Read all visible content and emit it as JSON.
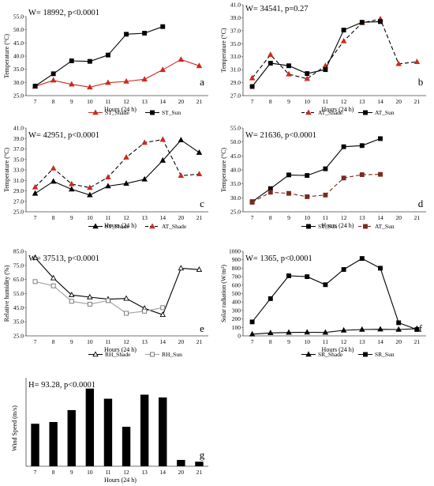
{
  "xlabel": "Hours (24 h)",
  "hour_ticks": [
    "7",
    "8",
    "9",
    "10",
    "11",
    "12",
    "13",
    "14",
    "20",
    "21"
  ],
  "chart_data": [
    {
      "id": "a",
      "type": "line",
      "stat": "W= 18992, p<0.0001",
      "panel_label": "a",
      "ylabel": "Temperature (°C)",
      "ylim": [
        25.0,
        55.0
      ],
      "yticks": [
        "25.0",
        "30.0",
        "35.0",
        "40.0",
        "45.0",
        "50.0",
        "55.0"
      ],
      "categories": [
        "7",
        "8",
        "9",
        "10",
        "11",
        "12",
        "13",
        "14",
        "20",
        "21"
      ],
      "series": [
        {
          "name": "ST_Shade",
          "marker": "tri",
          "dash": false,
          "color": "#cc2a1f",
          "mcolor": "#cc2a1f",
          "values": [
            28.5,
            30.8,
            29.3,
            28.2,
            29.9,
            30.4,
            31.2,
            34.8,
            38.7,
            36.3
          ]
        },
        {
          "name": "ST_Sun",
          "marker": "sq",
          "dash": false,
          "color": "#000000",
          "mcolor": "#000000",
          "values": [
            28.6,
            33.3,
            38.2,
            38.0,
            40.4,
            48.3,
            48.7,
            51.2,
            null,
            null
          ]
        }
      ]
    },
    {
      "id": "b",
      "type": "line",
      "stat": "W= 34541, p=0.27",
      "panel_label": "b",
      "ylabel": "Temperature (°C)",
      "ylim": [
        27.0,
        41.0
      ],
      "yticks": [
        "27.0",
        "29.0",
        "31.0",
        "33.0",
        "35.0",
        "37.0",
        "39.0",
        "41.0"
      ],
      "categories": [
        "7",
        "8",
        "9",
        "10",
        "11",
        "12",
        "13",
        "14",
        "20",
        "21"
      ],
      "series": [
        {
          "name": "AT_Shade",
          "marker": "tri",
          "dash": true,
          "color": "#000000",
          "mcolor": "#cc2a1f",
          "values": [
            29.7,
            33.3,
            30.3,
            29.6,
            31.6,
            35.4,
            38.2,
            38.8,
            31.9,
            32.2
          ]
        },
        {
          "name": "AT_Sun",
          "marker": "sq",
          "dash": false,
          "color": "#000000",
          "mcolor": "#000000",
          "values": [
            28.4,
            32.0,
            31.6,
            30.4,
            31.0,
            37.1,
            38.3,
            38.4,
            null,
            null
          ]
        }
      ]
    },
    {
      "id": "c",
      "type": "line",
      "stat": "W= 42951, p<0.0001",
      "panel_label": "c",
      "ylabel": "Temperature (°C)",
      "ylim": [
        25.0,
        41.0
      ],
      "yticks": [
        "25.0",
        "27.0",
        "29.0",
        "31.0",
        "33.0",
        "35.0",
        "37.0",
        "39.0",
        "41.0"
      ],
      "categories": [
        "7",
        "8",
        "9",
        "10",
        "11",
        "12",
        "13",
        "14",
        "20",
        "21"
      ],
      "series": [
        {
          "name": "ST_Shade",
          "marker": "tri",
          "dash": false,
          "color": "#000000",
          "mcolor": "#000000",
          "values": [
            28.5,
            30.8,
            29.3,
            28.2,
            29.9,
            30.4,
            31.2,
            34.8,
            38.7,
            36.3
          ]
        },
        {
          "name": "AT_Shade",
          "marker": "tri",
          "dash": true,
          "color": "#000000",
          "mcolor": "#cc2a1f",
          "values": [
            29.7,
            33.3,
            30.3,
            29.6,
            31.6,
            35.4,
            38.2,
            38.8,
            31.9,
            32.2
          ]
        }
      ]
    },
    {
      "id": "d",
      "type": "line",
      "stat": "W= 21636, p<0.0001",
      "panel_label": "d",
      "ylabel": "Temperature (°C)",
      "ylim": [
        25.0,
        55.0
      ],
      "yticks": [
        "25.0",
        "30.0",
        "35.0",
        "40.0",
        "45.0",
        "50.0",
        "55.0"
      ],
      "categories": [
        "7",
        "8",
        "9",
        "10",
        "11",
        "12",
        "13",
        "14",
        "20",
        "21"
      ],
      "series": [
        {
          "name": "ST_Sun",
          "marker": "sq",
          "dash": false,
          "color": "#000000",
          "mcolor": "#000000",
          "values": [
            28.6,
            33.3,
            38.2,
            38.0,
            40.4,
            48.3,
            48.7,
            51.2,
            null,
            null
          ]
        },
        {
          "name": "AT_Sun",
          "marker": "sq",
          "dash": true,
          "color": "#7a2a22",
          "mcolor": "#7a2a22",
          "values": [
            28.4,
            32.0,
            31.6,
            30.4,
            31.0,
            37.1,
            38.3,
            38.4,
            null,
            null
          ]
        }
      ]
    },
    {
      "id": "e",
      "type": "line",
      "stat": "W= 37513, p<0.0001",
      "panel_label": "e",
      "ylabel": "Relative humidity (%)",
      "ylim": [
        25.0,
        85.0
      ],
      "yticks": [
        "25.0",
        "35.0",
        "45.0",
        "55.0",
        "65.0",
        "75.0",
        "85.0"
      ],
      "categories": [
        "7",
        "8",
        "9",
        "10",
        "11",
        "12",
        "13",
        "14",
        "20",
        "21"
      ],
      "series": [
        {
          "name": "RH_Shade",
          "marker": "otri",
          "dash": false,
          "color": "#000000",
          "mcolor": "#000000",
          "values": [
            80.5,
            66.0,
            54.0,
            52.5,
            51.0,
            51.5,
            44.5,
            40.0,
            73.0,
            72.0
          ]
        },
        {
          "name": "RH_Sun",
          "marker": "osq",
          "dash": false,
          "color": "#a0a0a0",
          "mcolor": "#707070",
          "values": [
            63.5,
            60.5,
            49.5,
            47.5,
            50.0,
            41.0,
            42.5,
            45.0,
            null,
            null
          ]
        }
      ]
    },
    {
      "id": "f",
      "type": "line",
      "stat": "W= 1365, p<0.0001",
      "panel_label": "f",
      "ylabel": "Solar radiation (W/m²)",
      "ylim": [
        0,
        1000
      ],
      "yticks": [
        "0",
        "100",
        "200",
        "300",
        "400",
        "500",
        "600",
        "700",
        "800",
        "900",
        "1000"
      ],
      "categories": [
        "7",
        "8",
        "9",
        "10",
        "11",
        "12",
        "13",
        "14",
        "20",
        "21"
      ],
      "series": [
        {
          "name": "SR_Shade",
          "marker": "tri",
          "dash": false,
          "color": "#000000",
          "mcolor": "#000000",
          "values": [
            20,
            35,
            40,
            42,
            40,
            65,
            75,
            78,
            75,
            85
          ]
        },
        {
          "name": "SR_Sun",
          "marker": "sq",
          "dash": false,
          "color": "#000000",
          "mcolor": "#000000",
          "values": [
            165,
            440,
            710,
            700,
            605,
            785,
            915,
            800,
            155,
            75
          ]
        }
      ]
    },
    {
      "id": "g",
      "type": "bar",
      "stat": "H= 93.28, p<0.0001",
      "panel_label": "g",
      "ylabel": "Wind Speed (m/s)",
      "ylim": [
        0,
        3.5
      ],
      "categories": [
        "7",
        "8",
        "9",
        "10",
        "11",
        "12",
        "13",
        "14",
        "20",
        "21"
      ],
      "values": [
        1.68,
        1.75,
        2.22,
        3.07,
        2.67,
        1.56,
        2.83,
        2.72,
        0.25,
        0.18
      ]
    }
  ]
}
